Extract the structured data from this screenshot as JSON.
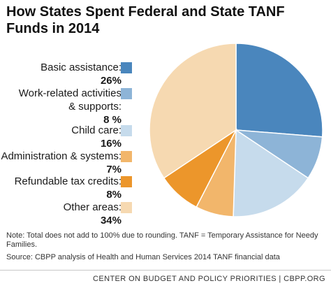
{
  "chart_data": {
    "type": "pie",
    "title": "How States Spent Federal and State TANF Funds in 2014",
    "start_angle": "12 o'clock",
    "direction": "clockwise",
    "slices": [
      {
        "label": "Basic assistance:",
        "pct_label": "26%",
        "value": 26,
        "color": "#4a86bd"
      },
      {
        "label": "Work-related activities & supports:",
        "pct_label": "8 %",
        "value": 8,
        "color": "#8db4d7"
      },
      {
        "label": "Child care:",
        "pct_label": "16%",
        "value": 16,
        "color": "#c6dbec"
      },
      {
        "label": "Administration & systems:",
        "pct_label": "7%",
        "value": 7,
        "color": "#f2b66b"
      },
      {
        "label": "Refundable tax credits:",
        "pct_label": "8%",
        "value": 8,
        "color": "#ec962b"
      },
      {
        "label": "Other areas:",
        "pct_label": "34%",
        "value": 34,
        "color": "#f6d9b1"
      }
    ],
    "note": "Note: Total does not add to 100% due to rounding. TANF = Temporary Assistance for Needy Families.",
    "source": "Source: CBPP analysis of Health and Human Services 2014 TANF financial data"
  },
  "footer": "CENTER ON BUDGET AND POLICY PRIORITIES | CBPP.ORG"
}
